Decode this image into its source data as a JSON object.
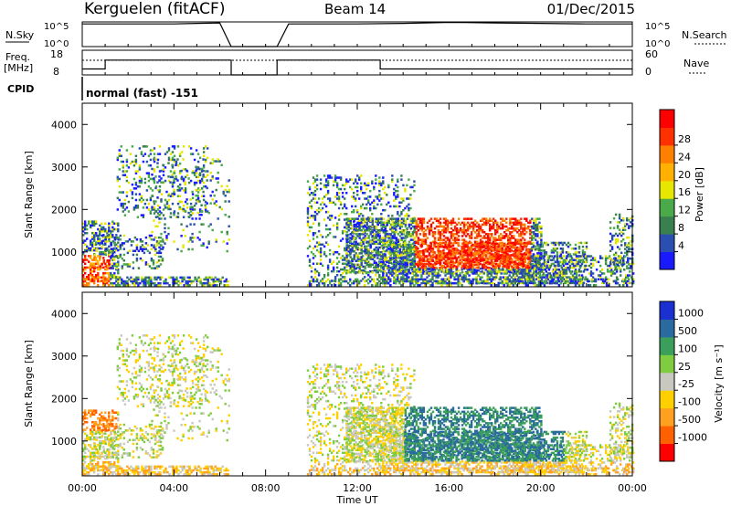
{
  "header": {
    "station": "Kerguelen (fitACF)",
    "beam": "Beam 14",
    "date": "01/Dec/2015"
  },
  "panel_labels": {
    "nsky": "N.Sky",
    "nsearch": "N.Search",
    "freq_line1": "Freq.",
    "freq_line2": "[MHz]",
    "nave": "Nave",
    "cpid": "CPID",
    "cpid_value": "normal (fast) -151"
  },
  "small_ticks": {
    "nsky_top": "10^5",
    "nsky_bottom": "10^0",
    "nsearch_top": "10^5",
    "nsearch_bottom": "10^0",
    "freq_top": "18",
    "freq_bottom": "8",
    "nave_top": "60",
    "nave_bottom": "0"
  },
  "colors": {
    "power_scale": [
      "#1a1aff",
      "#2a4fb0",
      "#3a7f4f",
      "#4aaa4a",
      "#e6e600",
      "#ffb000",
      "#ff7f00",
      "#ff3000",
      "#ff0000"
    ],
    "velocity_scale": [
      "#ff0000",
      "#ff6000",
      "#ffa020",
      "#ffd000",
      "#c8c8c0",
      "#80cc40",
      "#3a9f5a",
      "#2a6a9f",
      "#1a30d0"
    ]
  },
  "chart_data": [
    {
      "type": "line",
      "name": "nsky-nsearch-panel",
      "x": [
        0.0,
        0.5,
        1.0,
        2.0,
        3.0,
        4.0,
        5.0,
        6.0,
        6.5,
        8.5,
        9.0,
        10.0,
        12.0,
        14.0,
        16.0,
        18.0,
        20.0,
        22.0,
        24.0
      ],
      "series": [
        {
          "values": [
            4.6,
            4.6,
            4.6,
            4.6,
            4.6,
            4.6,
            4.7,
            4.8,
            0,
            0,
            4.6,
            4.6,
            4.6,
            4.7,
            4.9,
            4.8,
            4.7,
            4.6,
            4.6
          ]
        }
      ],
      "ylim": [
        0,
        5
      ]
    },
    {
      "type": "line",
      "name": "freq-nave-panel",
      "x": [
        0.0,
        1.0,
        1.0,
        6.5,
        6.5,
        8.5,
        8.5,
        13.0,
        13.0,
        24.0
      ],
      "series": [
        {
          "values": [
            10.4,
            10.4,
            14.0,
            14.0,
            8,
            8,
            14.0,
            14.0,
            10.4,
            10.4
          ]
        }
      ],
      "ylim": [
        8,
        18
      ]
    },
    {
      "type": "heatmap",
      "name": "power",
      "xlabel": "",
      "ylabel": "Slant Range [km]",
      "xlim": [
        0,
        24
      ],
      "ylim": [
        180,
        4500
      ],
      "yticks": [
        "1000",
        "2000",
        "3000",
        "4000"
      ],
      "colorbar_label": "Power [dB]",
      "colorbar_ticks": [
        "4",
        "8",
        "12",
        "16",
        "20",
        "24",
        "28"
      ],
      "colorbar_range": [
        0,
        32
      ]
    },
    {
      "type": "heatmap",
      "name": "velocity",
      "xlabel": "Time UT",
      "ylabel": "Slant Range [km]",
      "xlim": [
        0,
        24
      ],
      "ylim": [
        180,
        4500
      ],
      "xticks": [
        "00:00",
        "04:00",
        "08:00",
        "12:00",
        "16:00",
        "20:00",
        "00:00"
      ],
      "yticks": [
        "1000",
        "2000",
        "3000",
        "4000"
      ],
      "colorbar_label": "Velocity [m s⁻¹]",
      "colorbar_ticks": [
        "1000",
        "500",
        "100",
        "25",
        "-25",
        "-100",
        "-500",
        "-1000"
      ]
    }
  ]
}
